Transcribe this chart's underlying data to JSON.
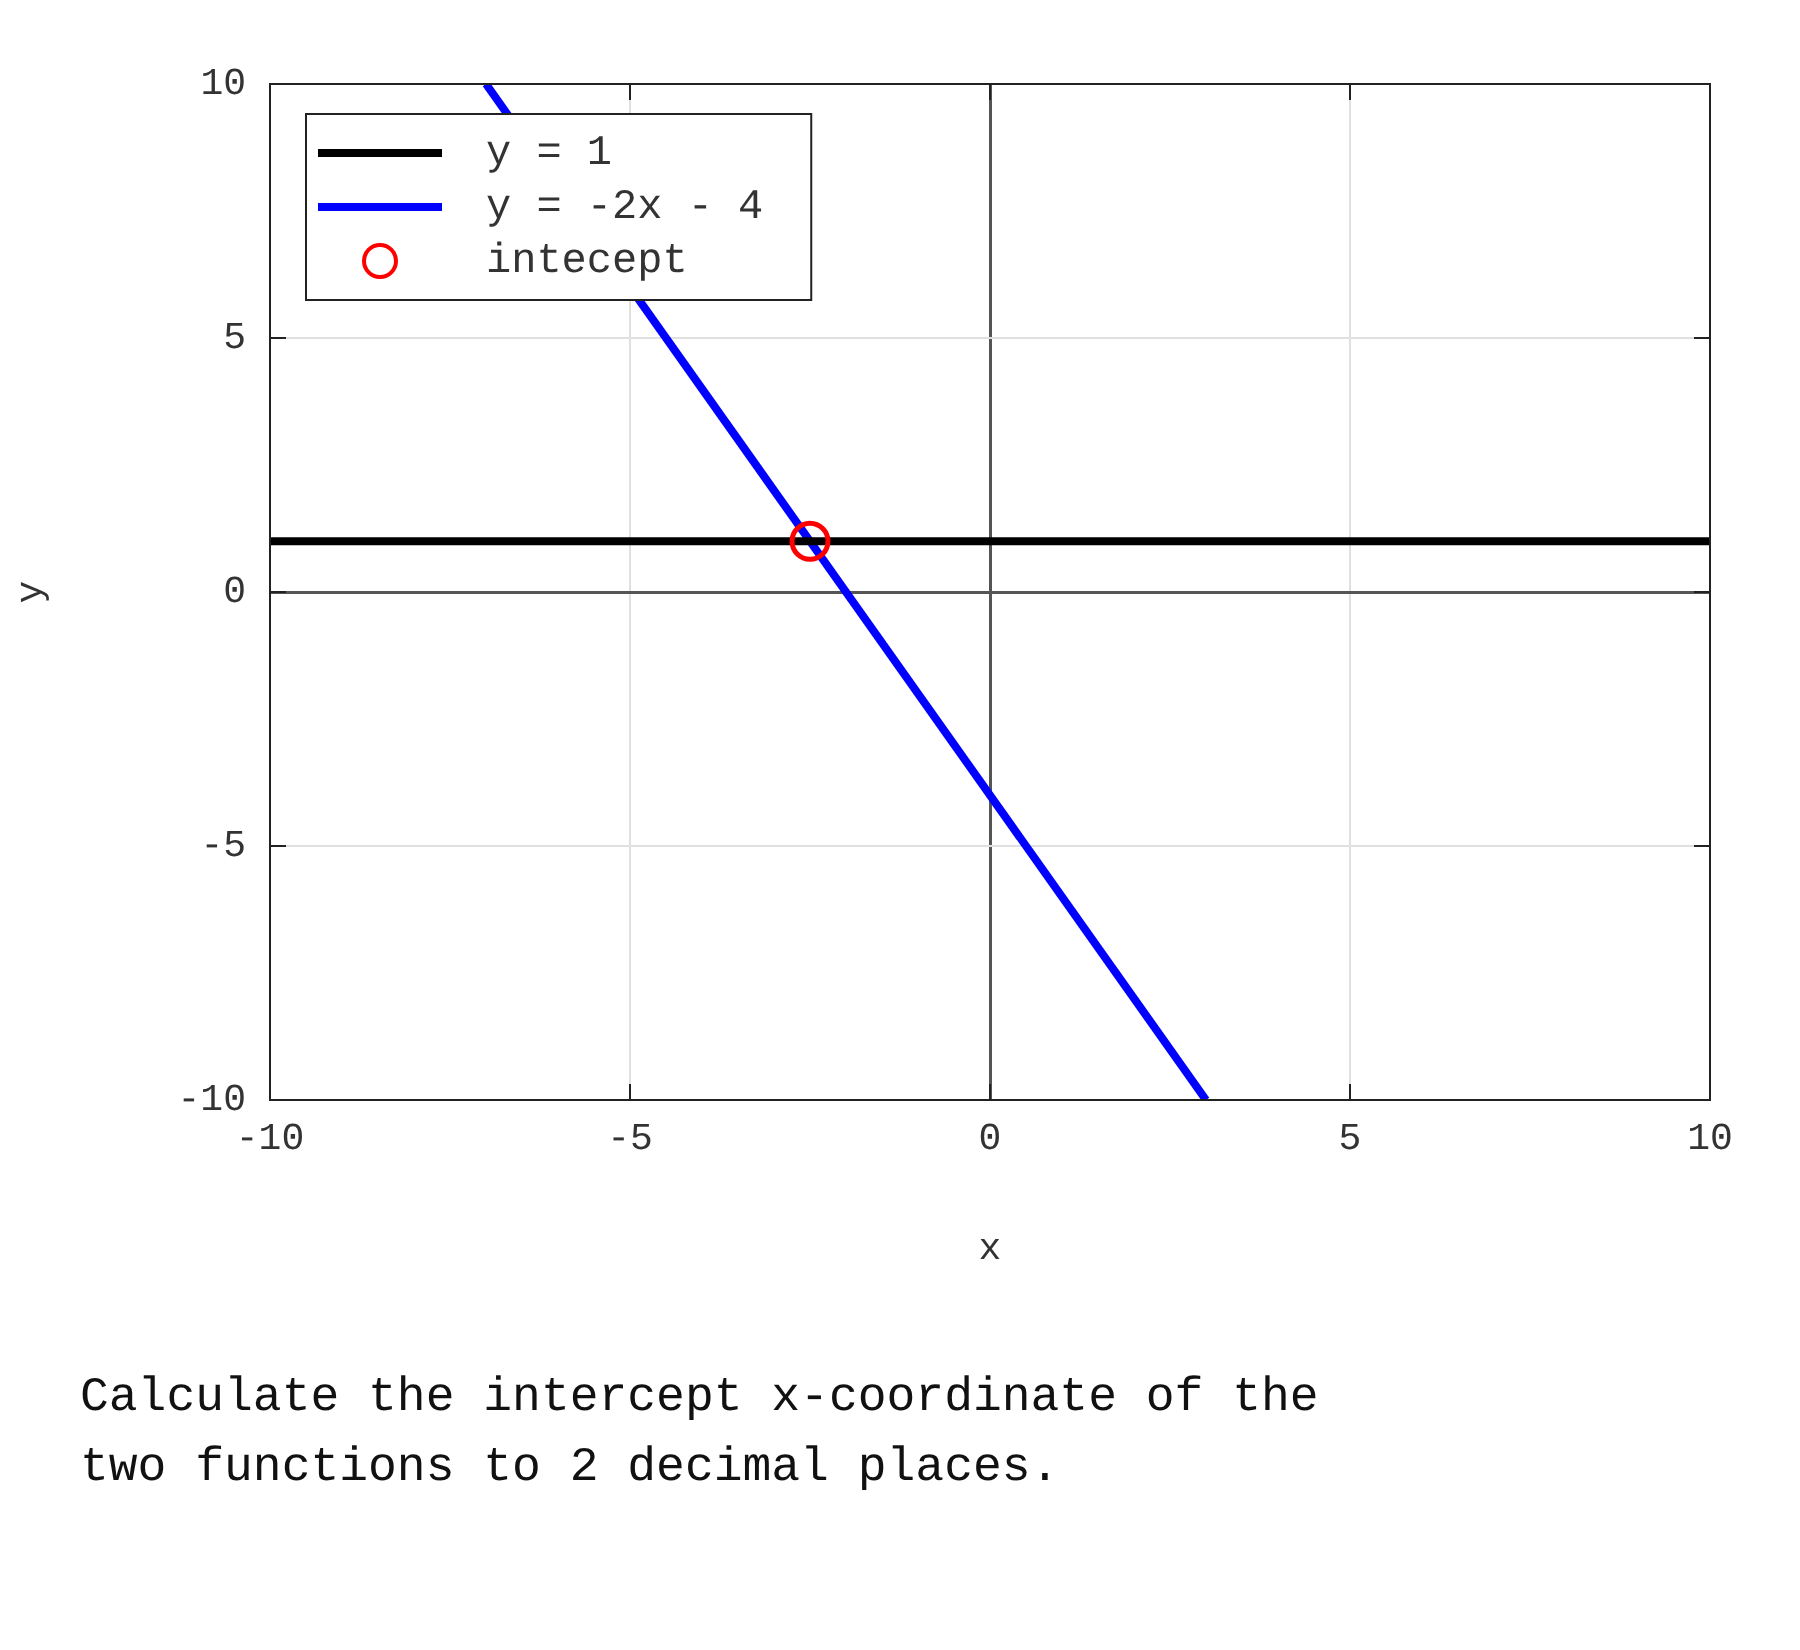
{
  "chart_data": {
    "type": "line",
    "xlabel": "x",
    "ylabel": "y",
    "xlim": [
      -10,
      10
    ],
    "xticks": [
      -10,
      -5,
      0,
      5,
      10
    ],
    "ylim": [
      -10,
      10
    ],
    "yticks": [
      -10,
      -5,
      0,
      5,
      10
    ],
    "grid": true,
    "legend": "top left",
    "series": [
      {
        "name": "y = 1",
        "type": "line",
        "color": "#000000",
        "x": [
          -10,
          10
        ],
        "values": [
          1,
          1
        ]
      },
      {
        "name": "y = -2x - 4",
        "type": "line",
        "color": "#0000ff",
        "x": [
          -7,
          3
        ],
        "values": [
          10,
          -10
        ]
      },
      {
        "name": "intecept",
        "type": "scatter",
        "marker": "circle",
        "color": "#ff0000",
        "x": [
          -2.5
        ],
        "values": [
          1
        ]
      }
    ],
    "annotations": [
      "Calculate the intercept x-coordinate of the two functions to 2 decimal places."
    ]
  }
}
